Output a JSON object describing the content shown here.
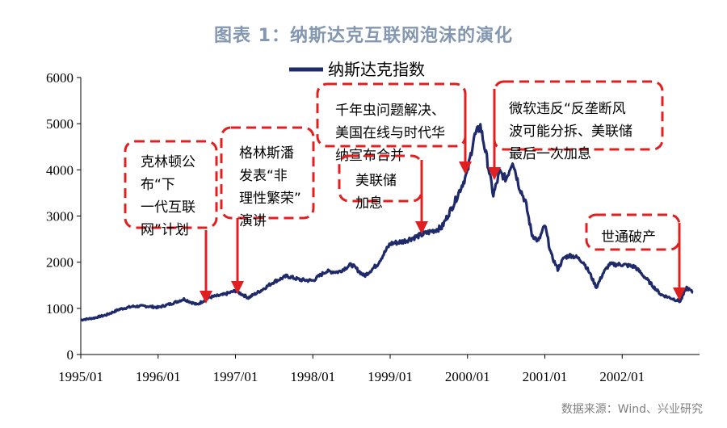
{
  "title": "图表 1：纳斯达克互联网泡沫的演化",
  "source": "数据来源：Wind、兴业研究",
  "colors": {
    "line": "#1f2a6b",
    "annotation": "#e02020",
    "title": "#8497b0",
    "axis": "#000000"
  },
  "chart_data": {
    "type": "line",
    "series": [
      {
        "name": "纳斯达克指数",
        "x": [
          "1995-01",
          "1995-03",
          "1995-05",
          "1995-07",
          "1995-09",
          "1995-11",
          "1996-01",
          "1996-03",
          "1996-05",
          "1996-07",
          "1996-09",
          "1996-11",
          "1997-01",
          "1997-03",
          "1997-05",
          "1997-07",
          "1997-09",
          "1997-11",
          "1998-01",
          "1998-03",
          "1998-05",
          "1998-07",
          "1998-09",
          "1998-11",
          "1999-01",
          "1999-03",
          "1999-05",
          "1999-07",
          "1999-09",
          "1999-11",
          "2000-01",
          "2000-02",
          "2000-03",
          "2000-04",
          "2000-05",
          "2000-06",
          "2000-07",
          "2000-08",
          "2000-09",
          "2000-10",
          "2000-11",
          "2000-12",
          "2001-01",
          "2001-02",
          "2001-03",
          "2001-04",
          "2001-05",
          "2001-06",
          "2001-07",
          "2001-08",
          "2001-09",
          "2001-10",
          "2001-11",
          "2001-12",
          "2002-01",
          "2002-03",
          "2002-05",
          "2002-07",
          "2002-09",
          "2002-10",
          "2002-11",
          "2002-12"
        ],
        "values": [
          750,
          790,
          860,
          980,
          1040,
          1050,
          1020,
          1100,
          1200,
          1080,
          1240,
          1290,
          1380,
          1230,
          1390,
          1580,
          1700,
          1620,
          1600,
          1800,
          1790,
          1950,
          1700,
          1950,
          2400,
          2450,
          2550,
          2650,
          2750,
          3300,
          3950,
          4700,
          4950,
          4250,
          3450,
          3950,
          3800,
          4200,
          3650,
          3300,
          2600,
          2450,
          2800,
          2150,
          1850,
          2100,
          2150,
          2100,
          2000,
          1750,
          1450,
          1750,
          1950,
          1950,
          1950,
          1900,
          1600,
          1300,
          1200,
          1150,
          1450,
          1340
        ]
      }
    ],
    "xlim": [
      "1995-01",
      "2003-01"
    ],
    "xticks": [
      "1995/01",
      "1996/01",
      "1997/01",
      "1998/01",
      "1999/01",
      "2000/01",
      "2001/01",
      "2002/01"
    ],
    "ylim": [
      0,
      6000
    ],
    "yticks": [
      0,
      1000,
      2000,
      3000,
      4000,
      5000,
      6000
    ],
    "legend": {
      "position": "top-center"
    },
    "grid": false,
    "annotations": [
      {
        "text": "克林顿公布“下一代互联网”计划",
        "lines": [
          "克林顿公",
          "布“下",
          "一代互联",
          "网”计划"
        ],
        "date": "1996-10"
      },
      {
        "text": "格林斯潘发表“非理性繁荣”演讲",
        "lines": [
          "格林斯潘",
          "发表“非",
          "理性繁荣”",
          "演讲"
        ],
        "date": "1996-12"
      },
      {
        "text": "千年虫问题解决、美国在线与时代华纳宣布合并",
        "lines": [
          "千年虫问题解决、",
          "美国在线与时代华",
          "纳宣布合并"
        ],
        "date": "2000-01"
      },
      {
        "text": "美联储加息",
        "lines": [
          "美联储",
          "加息"
        ],
        "date": "1999-06"
      },
      {
        "text": "微软违反“反垄断风波可能分拆、美联储最后一次加息",
        "lines": [
          "微软违反“反垄断风",
          "波可能分拆、美联储",
          "最后一次加息"
        ],
        "date": "2000-04"
      },
      {
        "text": "世通破产",
        "lines": [
          "世通破产"
        ],
        "date": "2002-07"
      }
    ]
  }
}
